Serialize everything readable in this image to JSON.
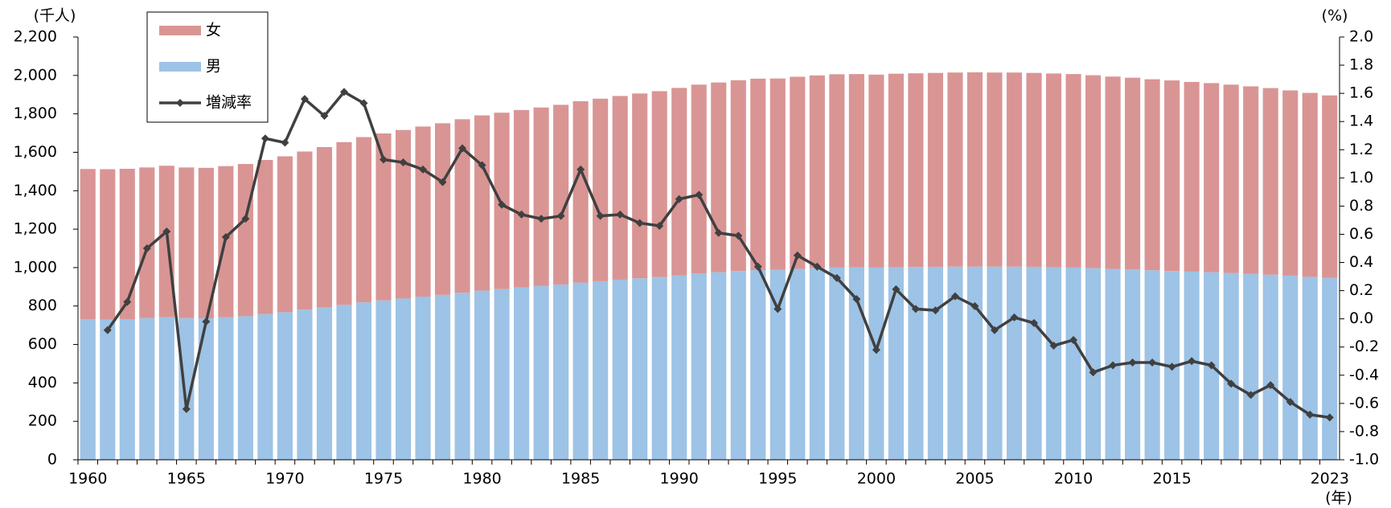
{
  "chart_data": {
    "type": "bar",
    "y_unit_label": "(千人)",
    "y2_unit_label": "(%)",
    "x_unit_label": "(年)",
    "categories": [
      1960,
      null,
      null,
      null,
      null,
      1965,
      null,
      null,
      null,
      null,
      1970,
      null,
      null,
      null,
      null,
      1975,
      null,
      null,
      null,
      null,
      1980,
      null,
      null,
      null,
      null,
      1985,
      null,
      null,
      null,
      null,
      1990,
      null,
      null,
      null,
      null,
      1995,
      null,
      null,
      null,
      null,
      2000,
      null,
      null,
      null,
      null,
      2005,
      null,
      null,
      null,
      null,
      2010,
      null,
      null,
      null,
      null,
      2015,
      null,
      null,
      null,
      null,
      null,
      null,
      null,
      2023
    ],
    "series": [
      {
        "name": "女",
        "type": "bar",
        "color": "#d99594",
        "values": [
          781,
          782,
          782,
          784,
          788,
          784,
          783,
          787,
          792,
          802,
          811,
          823,
          834,
          847,
          860,
          869,
          877,
          885,
          893,
          903,
          912,
          918,
          924,
          929,
          935,
          944,
          950,
          956,
          962,
          967,
          975,
          982,
          987,
          993,
          996,
          996,
          1000,
          1003,
          1006,
          1006,
          1004,
          1007,
          1008,
          1009,
          1010,
          1011,
          1010,
          1010,
          1009,
          1008,
          1007,
          1004,
          1001,
          998,
          994,
          992,
          987,
          984,
          980,
          975,
          971,
          964,
          957,
          950
        ]
      },
      {
        "name": "男",
        "type": "bar",
        "color": "#9dc3e6",
        "values": [
          732,
          730,
          732,
          737,
          742,
          737,
          736,
          741,
          747,
          758,
          768,
          781,
          793,
          806,
          819,
          829,
          839,
          849,
          858,
          869,
          880,
          888,
          896,
          904,
          912,
          922,
          929,
          937,
          944,
          951,
          960,
          970,
          976,
          982,
          987,
          988,
          993,
          997,
          1000,
          1001,
          1000,
          1002,
          1003,
          1004,
          1005,
          1005,
          1005,
          1005,
          1004,
          1002,
          1000,
          997,
          993,
          990,
          986,
          982,
          979,
          976,
          972,
          968,
          963,
          958,
          952,
          946
        ]
      },
      {
        "name": "増減率",
        "type": "line",
        "axis": "y2",
        "color": "#404040",
        "values": [
          null,
          -0.08,
          0.12,
          0.5,
          0.62,
          -0.64,
          -0.02,
          0.58,
          0.71,
          1.28,
          1.25,
          1.56,
          1.44,
          1.61,
          1.53,
          1.13,
          1.11,
          1.06,
          0.97,
          1.21,
          1.09,
          0.81,
          0.74,
          0.71,
          0.73,
          1.06,
          0.73,
          0.74,
          0.68,
          0.66,
          0.85,
          0.88,
          0.61,
          0.59,
          0.37,
          0.07,
          0.45,
          0.37,
          0.29,
          0.14,
          -0.22,
          0.21,
          0.07,
          0.06,
          0.16,
          0.09,
          -0.08,
          0.01,
          -0.03,
          -0.19,
          -0.15,
          -0.38,
          -0.33,
          -0.31,
          -0.31,
          -0.34,
          -0.3,
          -0.33,
          -0.46,
          -0.54,
          -0.47,
          -0.59,
          -0.68,
          -0.7
        ]
      }
    ],
    "ylim": [
      0,
      2200
    ],
    "yticks": [
      0,
      200,
      400,
      600,
      800,
      {
        "value": 1000,
        "label": "1,000"
      },
      {
        "value": 1200,
        "label": "1,200"
      },
      {
        "value": 1400,
        "label": "1,400"
      },
      {
        "value": 1600,
        "label": "1,600"
      },
      {
        "value": 1800,
        "label": "1,800"
      },
      {
        "value": 2000,
        "label": "2,000"
      },
      {
        "value": 2200,
        "label": "2,200"
      }
    ],
    "y2lim": [
      -1,
      2
    ],
    "y2ticks": [
      {
        "value": -1,
        "label": "-1.0"
      },
      -0.8,
      -0.6,
      -0.4,
      -0.2,
      {
        "value": 0,
        "label": "0.0"
      },
      0.2,
      0.4,
      0.6,
      0.8,
      {
        "value": 1,
        "label": "1.0"
      },
      1.2,
      1.4,
      1.6,
      1.8,
      {
        "value": 2,
        "label": "2.0"
      }
    ],
    "grid": false
  }
}
